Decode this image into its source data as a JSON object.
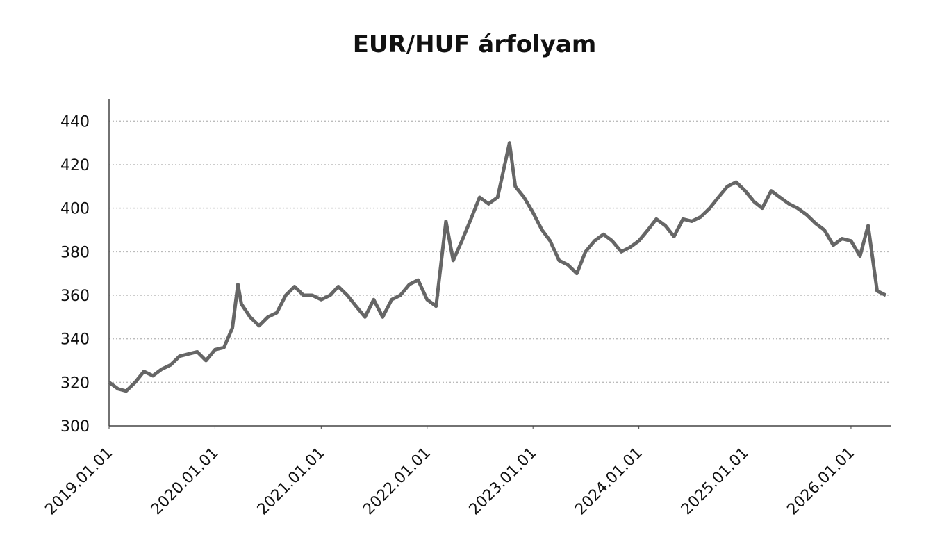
{
  "chart_data": {
    "type": "line",
    "title": "EUR/HUF árfolyam",
    "x": [
      "2019.01.01",
      "2019.02.01",
      "2019.03.01",
      "2019.04.01",
      "2019.05.01",
      "2019.06.01",
      "2019.07.01",
      "2019.08.01",
      "2019.09.01",
      "2019.10.01",
      "2019.11.01",
      "2019.12.01",
      "2020.01.01",
      "2020.02.01",
      "2020.03.01",
      "2020.03.20",
      "2020.04.01",
      "2020.05.01",
      "2020.06.01",
      "2020.07.01",
      "2020.08.01",
      "2020.09.01",
      "2020.10.01",
      "2020.11.01",
      "2020.12.01",
      "2021.01.01",
      "2021.02.01",
      "2021.03.01",
      "2021.04.01",
      "2021.05.01",
      "2021.06.01",
      "2021.07.01",
      "2021.08.01",
      "2021.09.01",
      "2021.10.01",
      "2021.11.01",
      "2021.12.01",
      "2022.01.01",
      "2022.02.01",
      "2022.03.07",
      "2022.04.01",
      "2022.05.01",
      "2022.06.01",
      "2022.07.01",
      "2022.08.01",
      "2022.09.01",
      "2022.10.12",
      "2022.11.01",
      "2022.12.01",
      "2023.01.01",
      "2023.02.01",
      "2023.03.01",
      "2023.04.01",
      "2023.05.01",
      "2023.06.01",
      "2023.07.01",
      "2023.08.01",
      "2023.09.01",
      "2023.10.01",
      "2023.11.01",
      "2023.12.01",
      "2024.01.01",
      "2024.02.01",
      "2024.03.01",
      "2024.04.01",
      "2024.05.01",
      "2024.06.01",
      "2024.07.01",
      "2024.08.01",
      "2024.09.01",
      "2024.10.01",
      "2024.11.01",
      "2024.12.01",
      "2025.01.01",
      "2025.02.01",
      "2025.03.01",
      "2025.04.01",
      "2025.05.01",
      "2025.06.01",
      "2025.07.01",
      "2025.08.01",
      "2025.09.01",
      "2025.10.01",
      "2025.11.01",
      "2025.12.01",
      "2026.01.01",
      "2026.02.01",
      "2026.03.01",
      "2026.04.01",
      "2026.05.01"
    ],
    "series": [
      {
        "name": "EUR/HUF",
        "color": "#666666",
        "values": [
          320,
          317,
          316,
          320,
          325,
          323,
          326,
          328,
          332,
          333,
          334,
          330,
          335,
          336,
          345,
          365,
          356,
          350,
          346,
          350,
          352,
          360,
          364,
          360,
          360,
          358,
          360,
          364,
          360,
          355,
          350,
          358,
          350,
          358,
          360,
          365,
          367,
          358,
          355,
          394,
          376,
          385,
          395,
          405,
          402,
          405,
          430,
          410,
          405,
          398,
          390,
          385,
          376,
          374,
          370,
          380,
          385,
          388,
          385,
          380,
          382,
          385,
          390,
          395,
          392,
          387,
          395,
          394,
          396,
          400,
          405,
          410,
          412,
          408,
          403,
          400,
          408,
          405,
          402,
          400,
          397,
          393,
          390,
          383,
          386,
          385,
          378,
          392,
          362,
          360
        ]
      }
    ],
    "xlim": [
      "2019.01.01",
      "2026.05.20"
    ],
    "xticks": [
      "2019.01.01",
      "2020.01.01",
      "2021.01.01",
      "2022.01.01",
      "2023.01.01",
      "2024.01.01",
      "2025.01.01",
      "2026.01.01"
    ],
    "ylim": [
      300,
      450
    ],
    "yticks": [
      300,
      320,
      340,
      360,
      380,
      400,
      420,
      440
    ],
    "grid": true
  }
}
